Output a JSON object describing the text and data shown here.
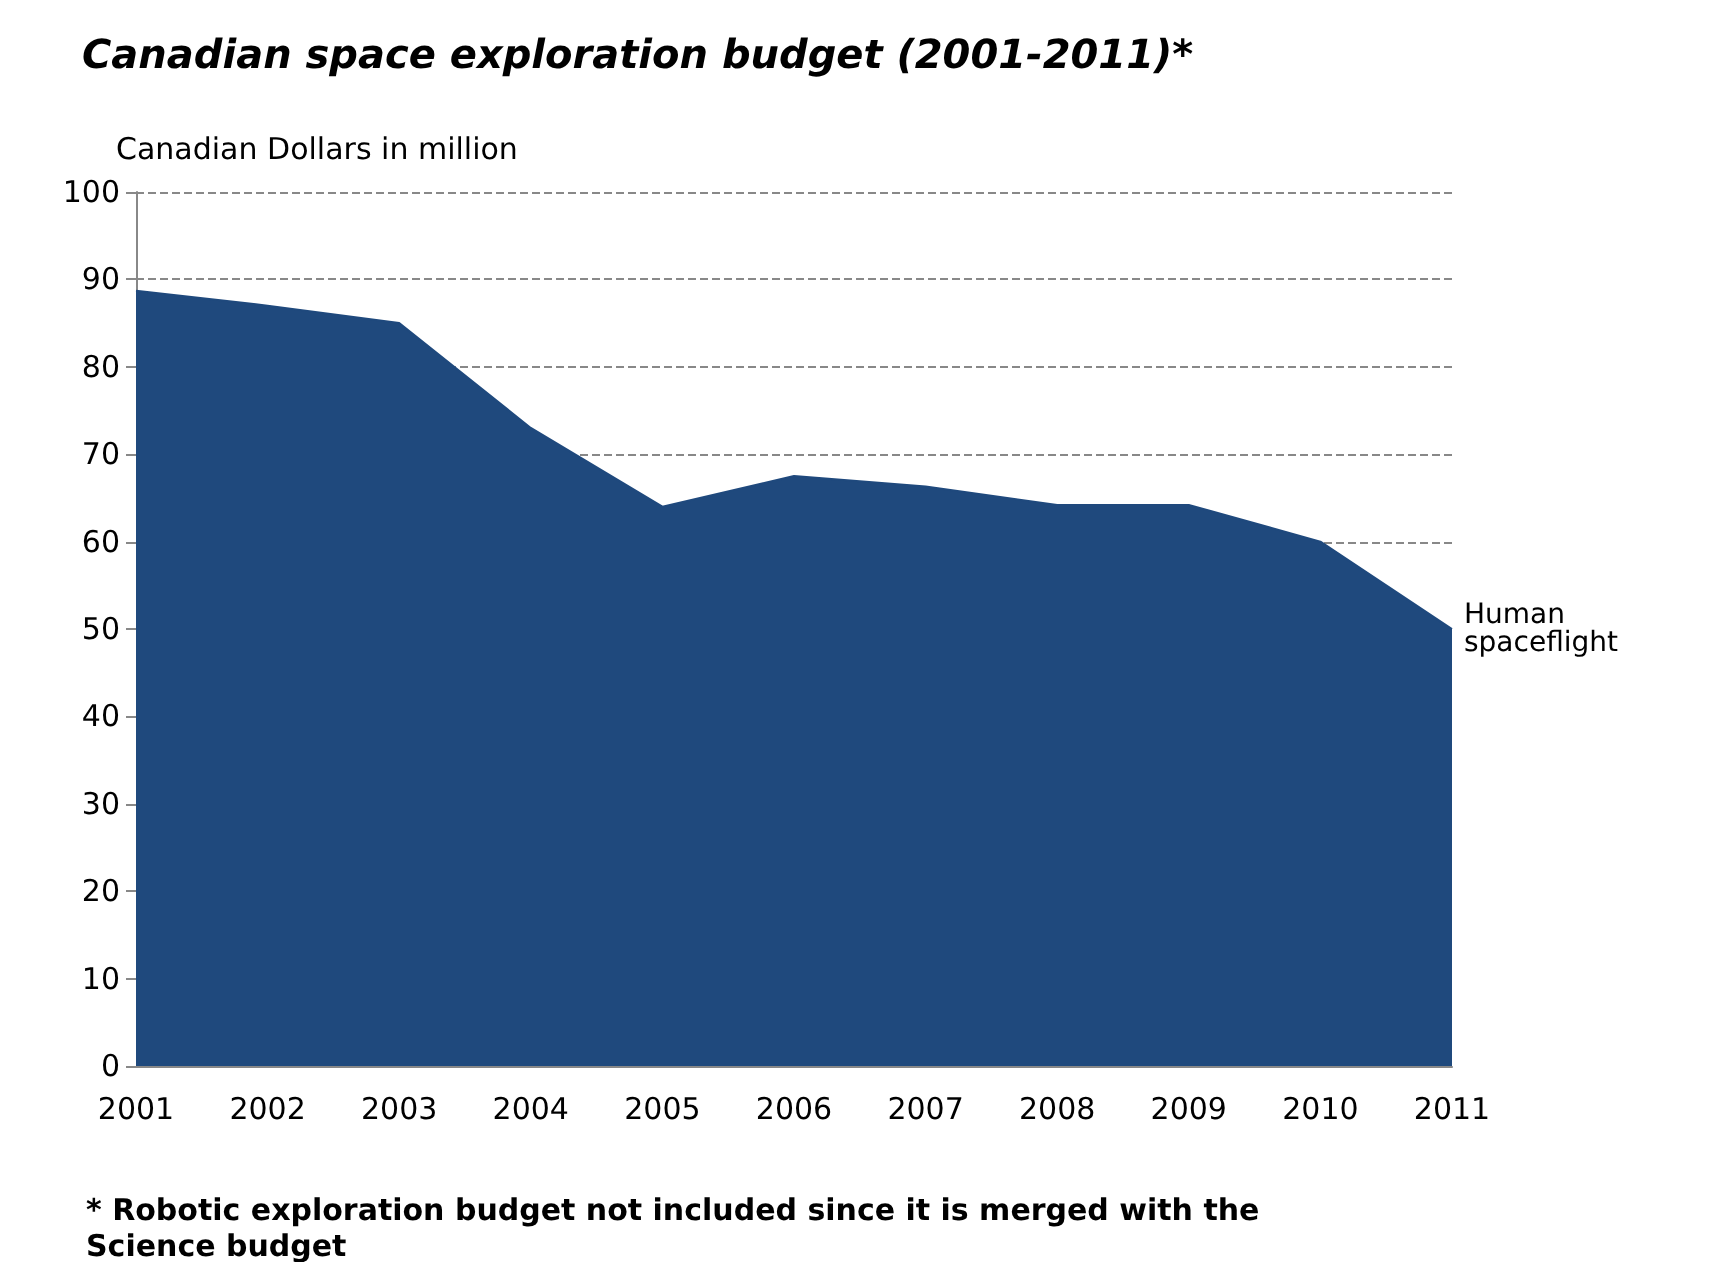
{
  "chart_data": {
    "type": "area",
    "title": "Canadian space exploration budget (2001-2011)*",
    "ylabel": "Canadian Dollars in million",
    "categories": [
      "2001",
      "2002",
      "2003",
      "2004",
      "2005",
      "2006",
      "2007",
      "2008",
      "2009",
      "2010",
      "2011"
    ],
    "series": [
      {
        "name": "Human spaceflight",
        "color": "#1f497d",
        "values": [
          88.7,
          87,
          85,
          73,
          64,
          67.5,
          66.3,
          64.2,
          64.2,
          60,
          50
        ]
      }
    ],
    "ylim": [
      0,
      100
    ],
    "yticks": [
      0,
      10,
      20,
      30,
      40,
      50,
      60,
      70,
      80,
      90,
      100
    ],
    "grid": "y",
    "legend": false,
    "annotations": [
      "* Robotic exploration budget not included since it is merged with the Science budget"
    ]
  }
}
